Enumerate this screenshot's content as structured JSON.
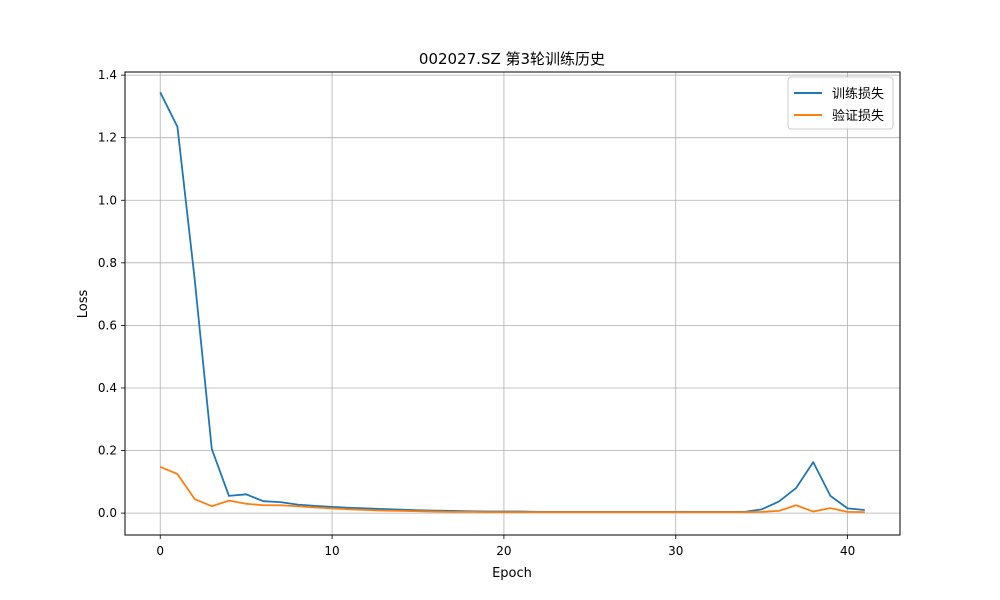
{
  "chart_data": {
    "type": "line",
    "title": "002027.SZ 第3轮训练历史",
    "xlabel": "Epoch",
    "ylabel": "Loss",
    "xlim": [
      -2.05,
      43.05
    ],
    "ylim": [
      -0.07,
      1.41
    ],
    "xticks": [
      0,
      10,
      20,
      30,
      40
    ],
    "yticks": [
      0.0,
      0.2,
      0.4,
      0.6,
      0.8,
      1.0,
      1.2,
      1.4
    ],
    "xtick_labels": [
      "0",
      "10",
      "20",
      "30",
      "40"
    ],
    "ytick_labels": [
      "0.0",
      "0.2",
      "0.4",
      "0.6",
      "0.8",
      "1.0",
      "1.2",
      "1.4"
    ],
    "grid": true,
    "legend_position": "top-right",
    "x": [
      0,
      1,
      2,
      3,
      4,
      5,
      6,
      7,
      8,
      9,
      10,
      11,
      12,
      13,
      14,
      15,
      16,
      17,
      18,
      19,
      20,
      21,
      22,
      23,
      24,
      25,
      26,
      27,
      28,
      29,
      30,
      31,
      32,
      33,
      34,
      35,
      36,
      37,
      38,
      39,
      40,
      41
    ],
    "series": [
      {
        "name": "训练损失",
        "color": "#1f77b4",
        "values": [
          1.345,
          1.235,
          0.75,
          0.205,
          0.055,
          0.06,
          0.038,
          0.035,
          0.027,
          0.023,
          0.02,
          0.017,
          0.015,
          0.013,
          0.011,
          0.009,
          0.008,
          0.007,
          0.006,
          0.005,
          0.005,
          0.005,
          0.004,
          0.004,
          0.004,
          0.004,
          0.004,
          0.004,
          0.004,
          0.004,
          0.004,
          0.004,
          0.004,
          0.004,
          0.004,
          0.012,
          0.037,
          0.08,
          0.163,
          0.055,
          0.015,
          0.01
        ]
      },
      {
        "name": "验证损失",
        "color": "#ff7f0e",
        "values": [
          0.148,
          0.125,
          0.045,
          0.022,
          0.04,
          0.03,
          0.025,
          0.025,
          0.022,
          0.018,
          0.015,
          0.012,
          0.01,
          0.008,
          0.007,
          0.006,
          0.005,
          0.004,
          0.004,
          0.003,
          0.003,
          0.003,
          0.003,
          0.003,
          0.003,
          0.003,
          0.003,
          0.003,
          0.003,
          0.003,
          0.003,
          0.003,
          0.003,
          0.003,
          0.003,
          0.004,
          0.007,
          0.025,
          0.005,
          0.016,
          0.004,
          0.003
        ]
      }
    ]
  }
}
